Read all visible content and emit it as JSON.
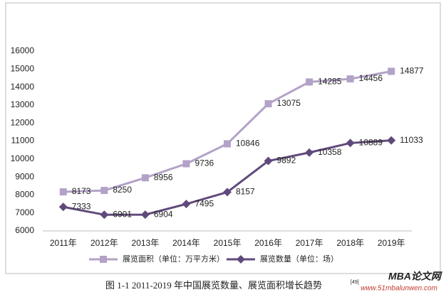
{
  "chart_data": {
    "type": "line",
    "categories": [
      "2011年",
      "2012年",
      "2013年",
      "2014年",
      "2015年",
      "2016年",
      "2017年",
      "2018年",
      "2019年"
    ],
    "series": [
      {
        "name": "展览面积（单位：万平方米）",
        "color": "#b3a2c7",
        "marker": "square",
        "values": [
          8173,
          8250,
          8956,
          9736,
          10846,
          13075,
          14285,
          14456,
          14877
        ]
      },
      {
        "name": "展览数量（单位：场）",
        "color": "#604a7b",
        "marker": "diamond",
        "values": [
          7333,
          6901,
          6904,
          7495,
          8157,
          9892,
          10358,
          10889,
          11033
        ]
      }
    ],
    "ylim": [
      6000,
      16000
    ],
    "yticks": [
      6000,
      7000,
      8000,
      9000,
      10000,
      11000,
      12000,
      13000,
      14000,
      15000,
      16000
    ],
    "grid": false,
    "legend": "bottom",
    "caption": "图 1-1 2011-2019 年中国展览数量、展览面积增长趋势",
    "caption_ref": "[49]",
    "watermark": "MBA论文网",
    "watermark_url": "www.51mbalunwen.com"
  }
}
